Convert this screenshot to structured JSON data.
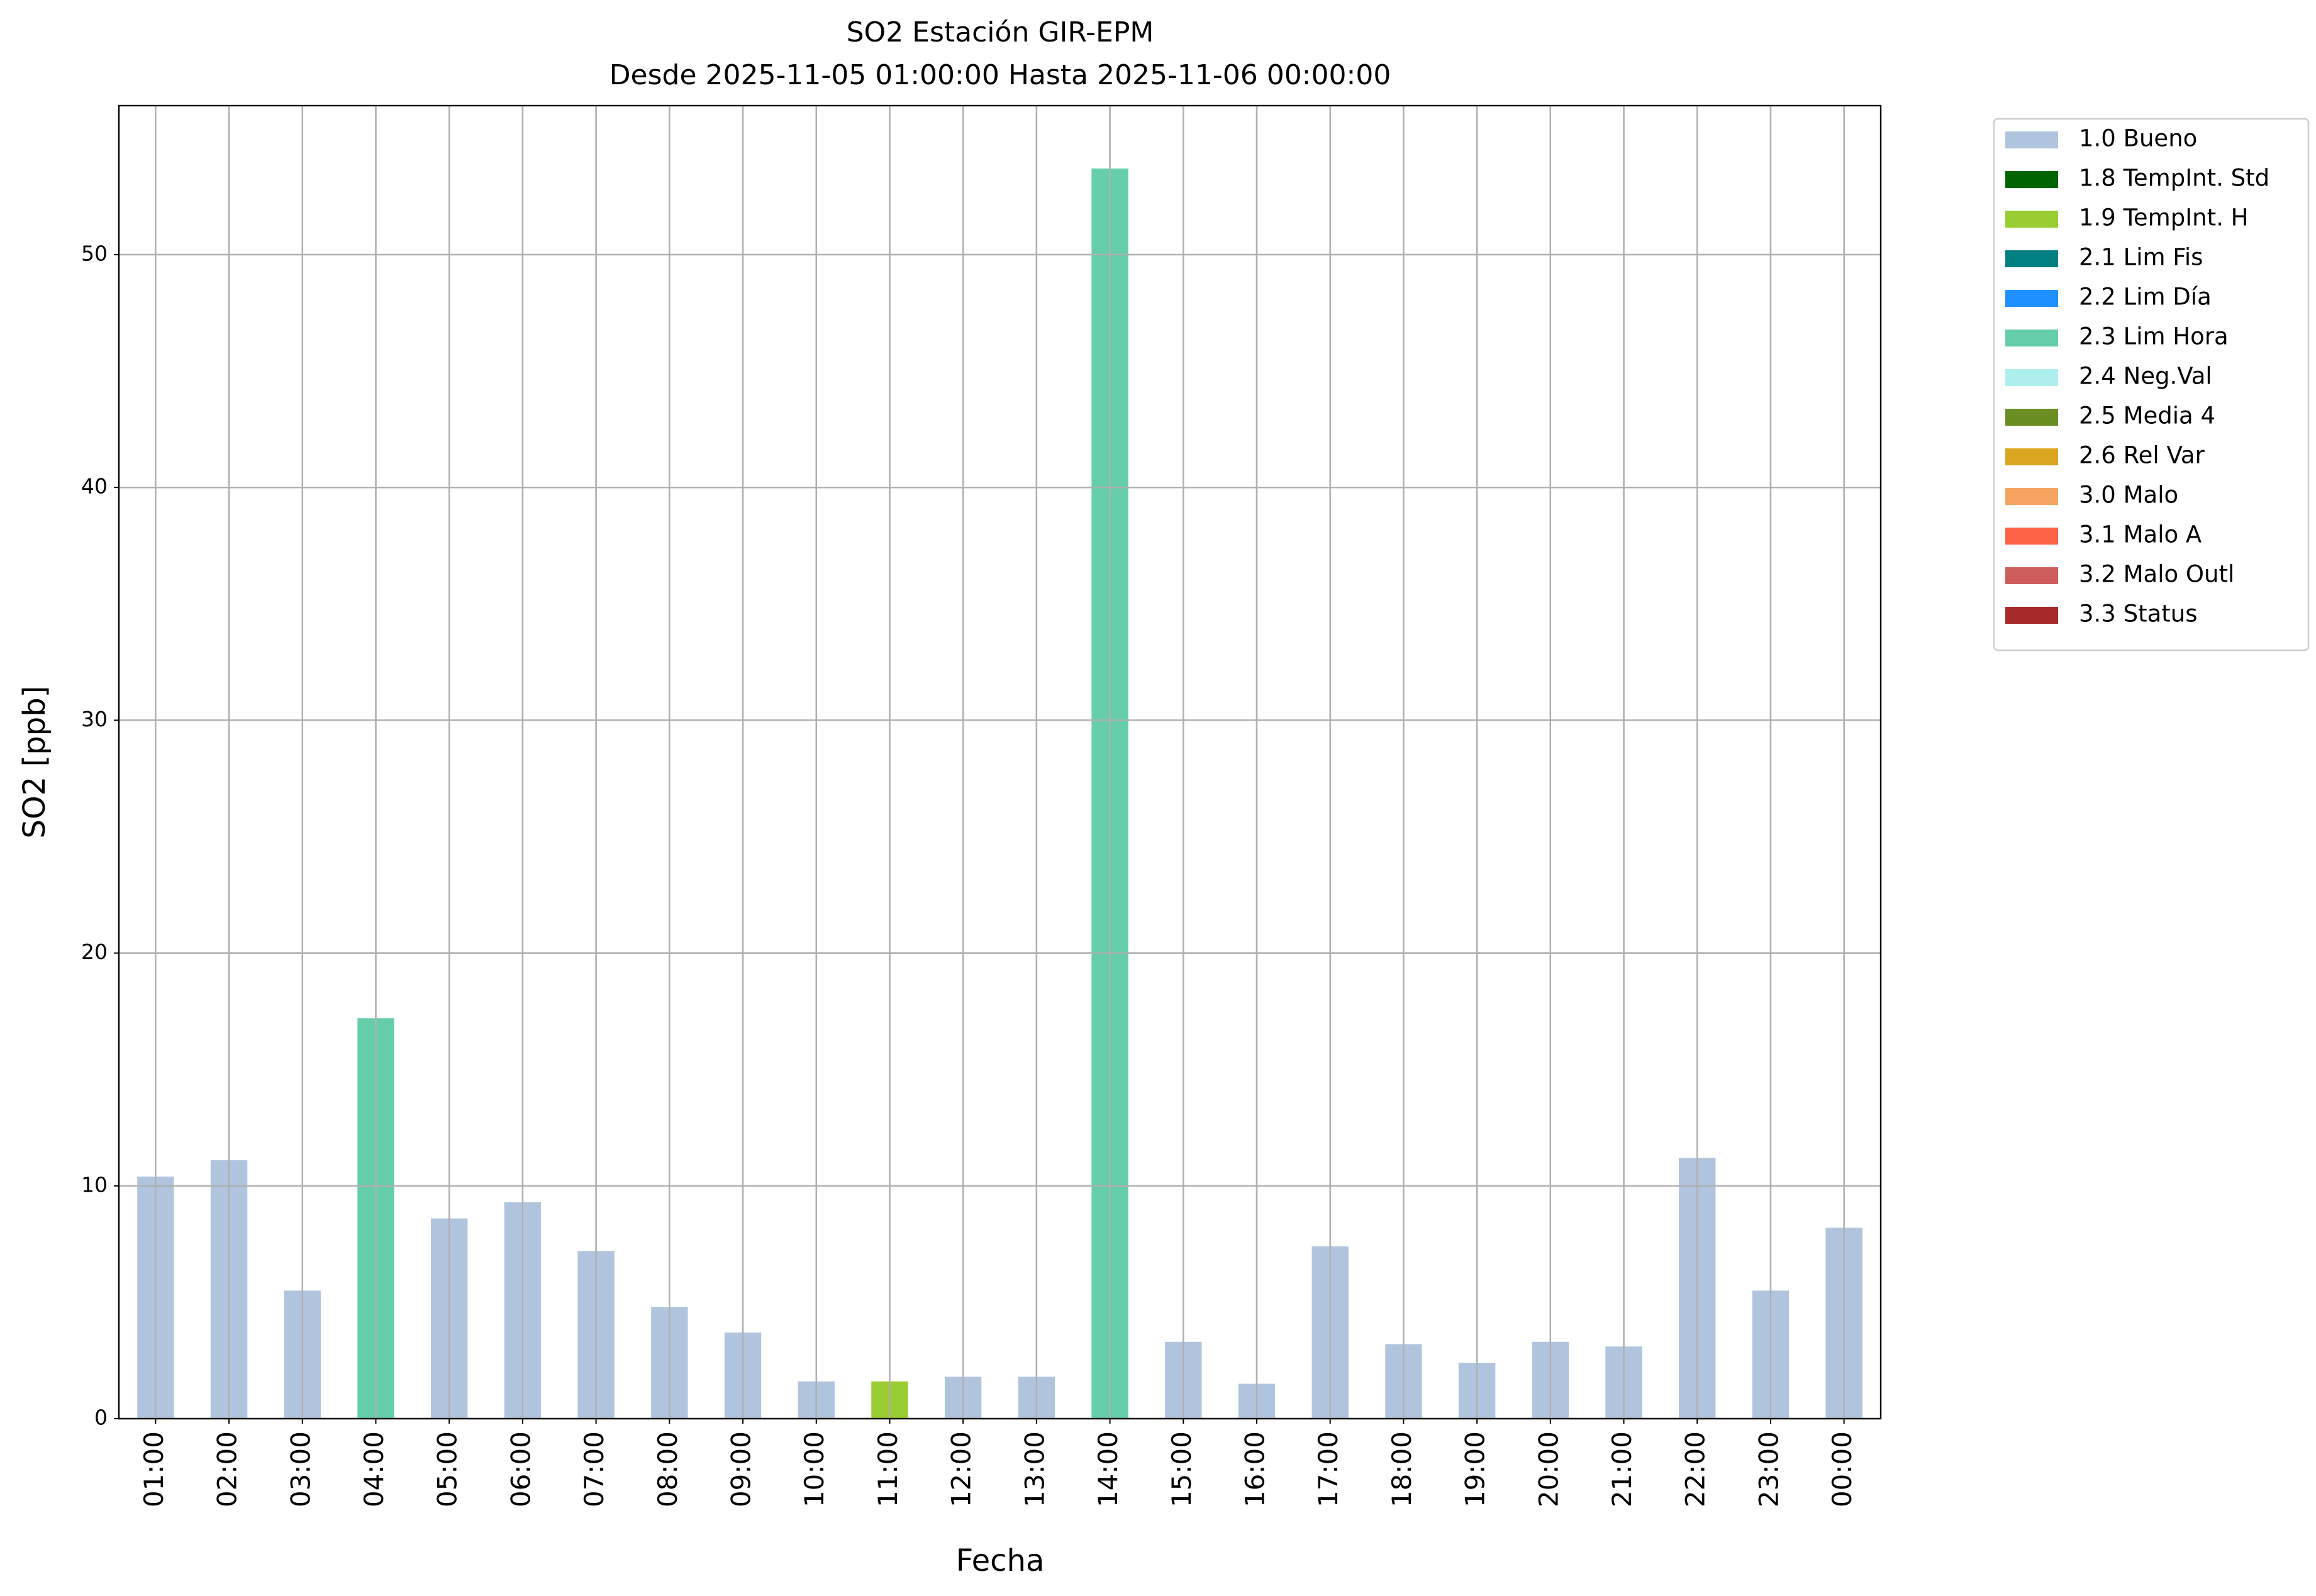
{
  "chart_data": {
    "type": "bar",
    "stacked": true,
    "title": "SO2 Estación GIR-EPM",
    "subtitle": "Desde 2025-11-05 01:00:00 Hasta 2025-11-06 00:00:00",
    "x_label": "Fecha",
    "y_label": "SO2 [ppb]",
    "categories": [
      "01:00",
      "02:00",
      "03:00",
      "04:00",
      "05:00",
      "06:00",
      "07:00",
      "08:00",
      "09:00",
      "10:00",
      "11:00",
      "12:00",
      "13:00",
      "14:00",
      "15:00",
      "16:00",
      "17:00",
      "18:00",
      "19:00",
      "20:00",
      "21:00",
      "22:00",
      "23:00",
      "00:00"
    ],
    "series": [
      {
        "name": "1.0 Bueno",
        "color": "#b0c4de",
        "values": [
          10.4,
          11.1,
          5.5,
          null,
          8.6,
          9.3,
          7.2,
          4.8,
          3.7,
          1.6,
          null,
          1.8,
          1.8,
          null,
          3.3,
          1.5,
          7.4,
          3.2,
          2.4,
          3.3,
          3.1,
          11.2,
          5.5,
          8.2
        ]
      },
      {
        "name": "1.8 TempInt. Std",
        "color": "#006400",
        "values": [
          null,
          null,
          null,
          null,
          null,
          null,
          null,
          null,
          null,
          null,
          null,
          null,
          null,
          null,
          null,
          null,
          null,
          null,
          null,
          null,
          null,
          null,
          null,
          null
        ]
      },
      {
        "name": "1.9 TempInt. H",
        "color": "#9acd32",
        "values": [
          null,
          null,
          null,
          null,
          null,
          null,
          null,
          null,
          null,
          null,
          1.6,
          null,
          null,
          null,
          null,
          null,
          null,
          null,
          null,
          null,
          null,
          null,
          null,
          null
        ]
      },
      {
        "name": "2.1 Lim Fis",
        "color": "#008080",
        "values": [
          null,
          null,
          null,
          null,
          null,
          null,
          null,
          null,
          null,
          null,
          null,
          null,
          null,
          null,
          null,
          null,
          null,
          null,
          null,
          null,
          null,
          null,
          null,
          null
        ]
      },
      {
        "name": "2.2 Lim Día",
        "color": "#1e90ff",
        "values": [
          null,
          null,
          null,
          null,
          null,
          null,
          null,
          null,
          null,
          null,
          null,
          null,
          null,
          null,
          null,
          null,
          null,
          null,
          null,
          null,
          null,
          null,
          null,
          null
        ]
      },
      {
        "name": "2.3 Lim Hora",
        "color": "#66cdaa",
        "values": [
          null,
          null,
          null,
          17.2,
          null,
          null,
          null,
          null,
          null,
          null,
          null,
          null,
          null,
          53.7,
          null,
          null,
          null,
          null,
          null,
          null,
          null,
          null,
          null,
          null
        ]
      },
      {
        "name": "2.4 Neg.Val",
        "color": "#afeeee",
        "values": [
          null,
          null,
          null,
          null,
          null,
          null,
          null,
          null,
          null,
          null,
          null,
          null,
          null,
          null,
          null,
          null,
          null,
          null,
          null,
          null,
          null,
          null,
          null,
          null
        ]
      },
      {
        "name": "2.5 Media 4",
        "color": "#6b8e23",
        "values": [
          null,
          null,
          null,
          null,
          null,
          null,
          null,
          null,
          null,
          null,
          null,
          null,
          null,
          null,
          null,
          null,
          null,
          null,
          null,
          null,
          null,
          null,
          null,
          null
        ]
      },
      {
        "name": "2.6 Rel Var",
        "color": "#daa520",
        "values": [
          null,
          null,
          null,
          null,
          null,
          null,
          null,
          null,
          null,
          null,
          null,
          null,
          null,
          null,
          null,
          null,
          null,
          null,
          null,
          null,
          null,
          null,
          null,
          null
        ]
      },
      {
        "name": "3.0 Malo",
        "color": "#f4a460",
        "values": [
          null,
          null,
          null,
          null,
          null,
          null,
          null,
          null,
          null,
          null,
          null,
          null,
          null,
          null,
          null,
          null,
          null,
          null,
          null,
          null,
          null,
          null,
          null,
          null
        ]
      },
      {
        "name": "3.1 Malo A",
        "color": "#ff6347",
        "values": [
          null,
          null,
          null,
          null,
          null,
          null,
          null,
          null,
          null,
          null,
          null,
          null,
          null,
          null,
          null,
          null,
          null,
          null,
          null,
          null,
          null,
          null,
          null,
          null
        ]
      },
      {
        "name": "3.2 Malo Outl",
        "color": "#cd5c5c",
        "values": [
          null,
          null,
          null,
          null,
          null,
          null,
          null,
          null,
          null,
          null,
          null,
          null,
          null,
          null,
          null,
          null,
          null,
          null,
          null,
          null,
          null,
          null,
          null,
          null
        ]
      },
      {
        "name": "3.3 Status",
        "color": "#a52a2a",
        "values": [
          null,
          null,
          null,
          null,
          null,
          null,
          null,
          null,
          null,
          null,
          null,
          null,
          null,
          null,
          null,
          null,
          null,
          null,
          null,
          null,
          null,
          null,
          null,
          null
        ]
      }
    ],
    "ylim": [
      0,
      56.4
    ],
    "yticks": [
      0,
      10,
      20,
      30,
      40,
      50
    ],
    "grid": true,
    "legend": "outside upper right"
  }
}
